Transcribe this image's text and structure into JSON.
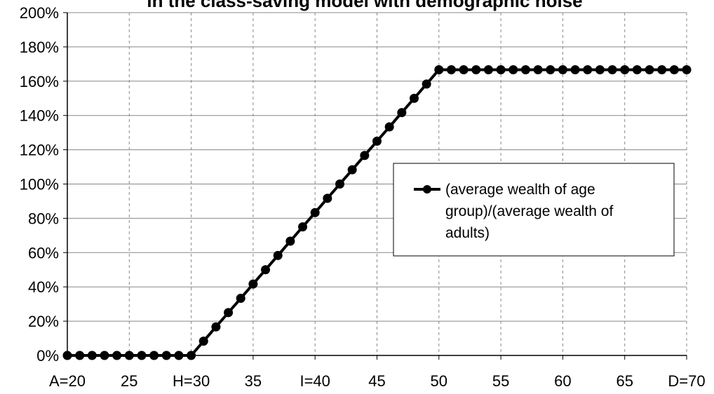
{
  "chart_data": {
    "type": "line",
    "title": "in the class-saving model with demographic noise",
    "xlabel": "",
    "ylabel": "",
    "x_tick_labels": [
      "A=20",
      "25",
      "H=30",
      "35",
      "I=40",
      "45",
      "50",
      "55",
      "60",
      "65",
      "D=70"
    ],
    "x_tick_values": [
      20,
      25,
      30,
      35,
      40,
      45,
      50,
      55,
      60,
      65,
      70
    ],
    "y_tick_labels": [
      "0%",
      "20%",
      "40%",
      "60%",
      "80%",
      "100%",
      "120%",
      "140%",
      "160%",
      "180%",
      "200%"
    ],
    "xlim": [
      20,
      70
    ],
    "ylim": [
      0,
      2.0
    ],
    "grid": {
      "vertical": "dashed",
      "horizontal": "solid"
    },
    "legend": {
      "placement": "center-right",
      "lines": [
        "(average wealth of age",
        "group)/(average wealth of",
        "adults)"
      ]
    },
    "series": [
      {
        "name": "(average wealth of age group)/(average wealth of adults)",
        "marker": "circle",
        "color": "#000000",
        "x": [
          20,
          21,
          22,
          23,
          24,
          25,
          26,
          27,
          28,
          29,
          30,
          31,
          32,
          33,
          34,
          35,
          36,
          37,
          38,
          39,
          40,
          41,
          42,
          43,
          44,
          45,
          46,
          47,
          48,
          49,
          50,
          51,
          52,
          53,
          54,
          55,
          56,
          57,
          58,
          59,
          60,
          61,
          62,
          63,
          64,
          65,
          66,
          67,
          68,
          69,
          70
        ],
        "y": [
          0,
          0,
          0,
          0,
          0,
          0,
          0,
          0,
          0,
          0,
          0,
          0.0833,
          0.1667,
          0.25,
          0.3333,
          0.4167,
          0.5,
          0.5833,
          0.6667,
          0.75,
          0.8333,
          0.9167,
          1.0,
          1.0833,
          1.1667,
          1.25,
          1.3333,
          1.4167,
          1.5,
          1.5833,
          1.6667,
          1.6667,
          1.6667,
          1.6667,
          1.6667,
          1.6667,
          1.6667,
          1.6667,
          1.6667,
          1.6667,
          1.6667,
          1.6667,
          1.6667,
          1.6667,
          1.6667,
          1.6667,
          1.6667,
          1.6667,
          1.6667,
          1.6667,
          1.6667
        ]
      }
    ]
  }
}
